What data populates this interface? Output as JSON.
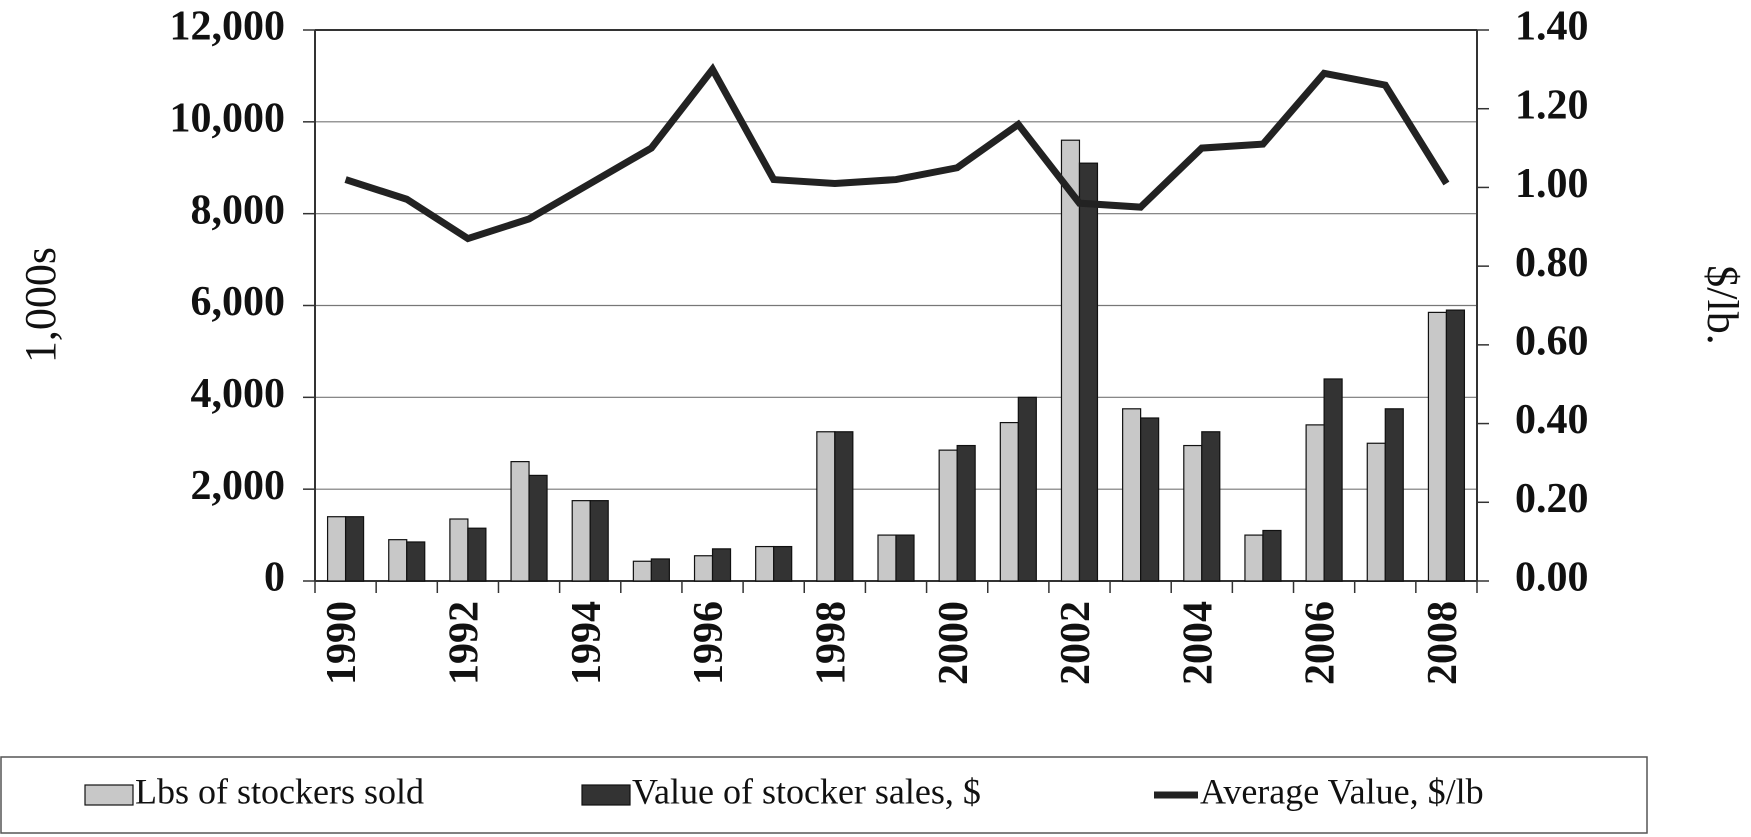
{
  "chart_data": {
    "type": "bar-line",
    "categories": [
      "1990",
      null,
      "1992",
      null,
      "1994",
      null,
      "1996",
      null,
      "1998",
      null,
      "2000",
      null,
      "2002",
      null,
      "2004",
      null,
      "2006",
      null,
      "2008"
    ],
    "y_label": "1,000s",
    "y2_label": "$/lb.",
    "series": [
      {
        "name": "Lbs of stockers sold",
        "type": "bar",
        "color": "#c8c8c8",
        "values": [
          1400,
          900,
          1350,
          2600,
          1750,
          430,
          550,
          750,
          3250,
          1000,
          2850,
          3450,
          9600,
          3750,
          2950,
          1000,
          3400,
          3000,
          5850
        ]
      },
      {
        "name": "Value of stocker sales, $",
        "type": "bar",
        "color": "#333333",
        "values": [
          1400,
          850,
          1150,
          2300,
          1750,
          480,
          700,
          750,
          3250,
          1000,
          2950,
          4000,
          9100,
          3550,
          3250,
          1100,
          4400,
          3750,
          5900
        ]
      },
      {
        "name": "Average Value, $/lb",
        "type": "line",
        "axis": "y2",
        "color": "#222222",
        "values": [
          1.02,
          0.97,
          0.87,
          0.92,
          1.01,
          1.1,
          1.3,
          1.02,
          1.01,
          1.02,
          1.05,
          1.16,
          0.96,
          0.95,
          1.1,
          1.11,
          1.29,
          1.26,
          1.01
        ]
      }
    ],
    "ylim": [
      0,
      12000
    ],
    "yticks": [
      0,
      {
        "value": 2000,
        "label": "2,000"
      },
      {
        "value": 4000,
        "label": "4,000"
      },
      {
        "value": 6000,
        "label": "6,000"
      },
      {
        "value": 8000,
        "label": "8,000"
      },
      {
        "value": 10000,
        "label": "10,000"
      },
      {
        "value": 12000,
        "label": "12,000"
      }
    ],
    "y2lim": [
      0,
      1.4
    ],
    "y2ticks": [
      {
        "value": 0,
        "label": "0.00"
      },
      {
        "value": 0.2,
        "label": "0.20"
      },
      {
        "value": 0.4,
        "label": "0.40"
      },
      {
        "value": 0.6,
        "label": "0.60"
      },
      {
        "value": 0.8,
        "label": "0.80"
      },
      {
        "value": 1.0,
        "label": "1.00"
      },
      {
        "value": 1.2,
        "label": "1.20"
      },
      {
        "value": 1.4,
        "label": "1.40"
      }
    ],
    "grid": true,
    "legend": "bottom"
  }
}
